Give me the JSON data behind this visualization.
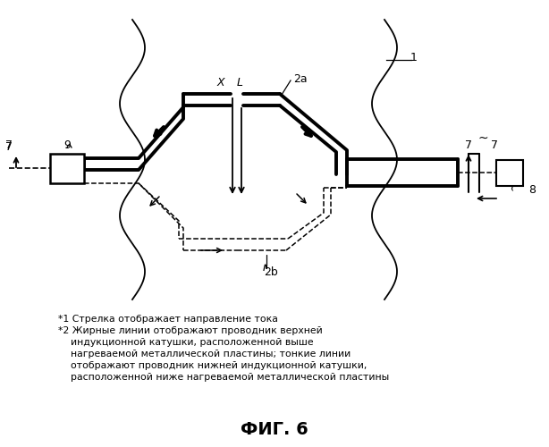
{
  "title": "ФИГ. 6",
  "bg_color": "#ffffff",
  "fig_width": 6.14,
  "fig_height": 5.0,
  "dpi": 100,
  "note1": "*1 Стрелка отображает направление тока",
  "note2": "*2 Жирные линии отображают проводник верхней",
  "note3": "    индукционной катушки, расположенной выше",
  "note4": "    нагреваемой металлической пластины; тонкие линии",
  "note5": "    отображают проводник нижней индукционной катушки,",
  "note6": "    расположенной ниже нагреваемой металлической пластины"
}
